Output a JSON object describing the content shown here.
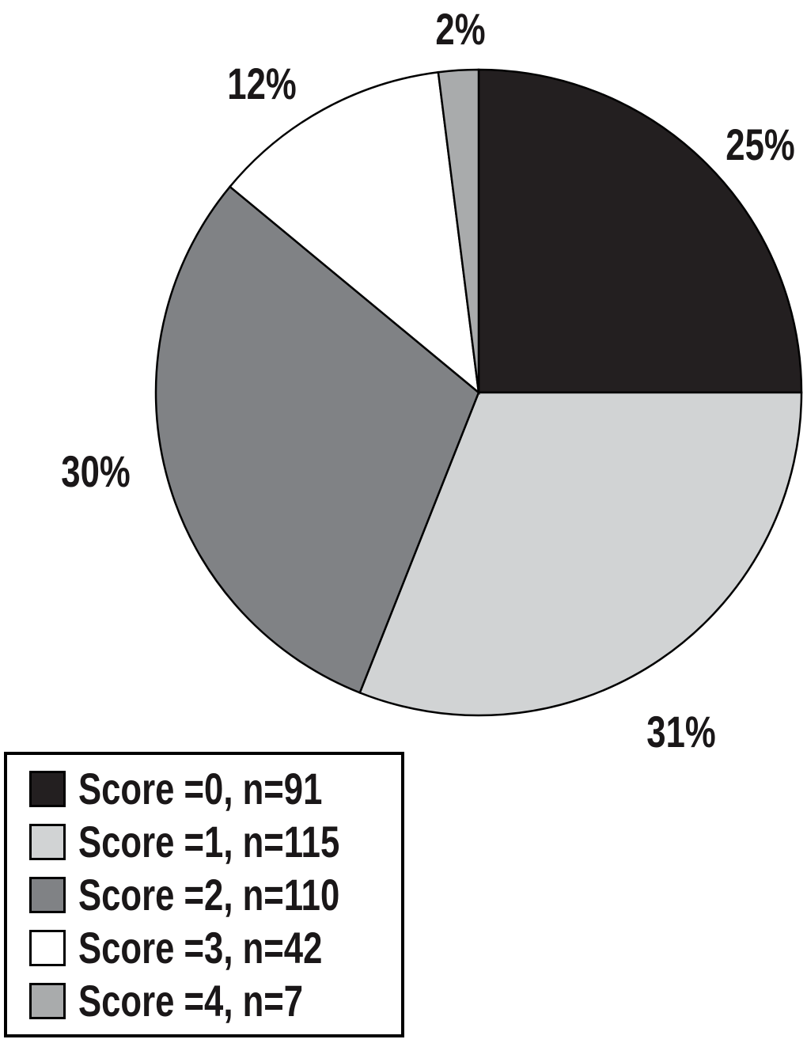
{
  "chart_data": {
    "type": "pie",
    "title": "",
    "legend_position": "bottom-left",
    "start_angle_deg": -90,
    "direction": "clockwise",
    "stroke_color": "#000000",
    "background_color": "#ffffff",
    "slices": [
      {
        "legend_label": "Score =0, n=91",
        "score": 0,
        "n": 91,
        "pct": 25,
        "pct_label": "25%",
        "color": "#231f20"
      },
      {
        "legend_label": "Score =1, n=115",
        "score": 1,
        "n": 115,
        "pct": 31,
        "pct_label": "31%",
        "color": "#d1d3d4"
      },
      {
        "legend_label": "Score =2, n=110",
        "score": 2,
        "n": 110,
        "pct": 30,
        "pct_label": "30%",
        "color": "#808285"
      },
      {
        "legend_label": "Score =3, n=42",
        "score": 3,
        "n": 42,
        "pct": 12,
        "pct_label": "12%",
        "color": "#ffffff"
      },
      {
        "legend_label": "Score =4, n=7",
        "score": 4,
        "n": 7,
        "pct": 2,
        "pct_label": "2%",
        "color": "#a9abac"
      }
    ]
  }
}
